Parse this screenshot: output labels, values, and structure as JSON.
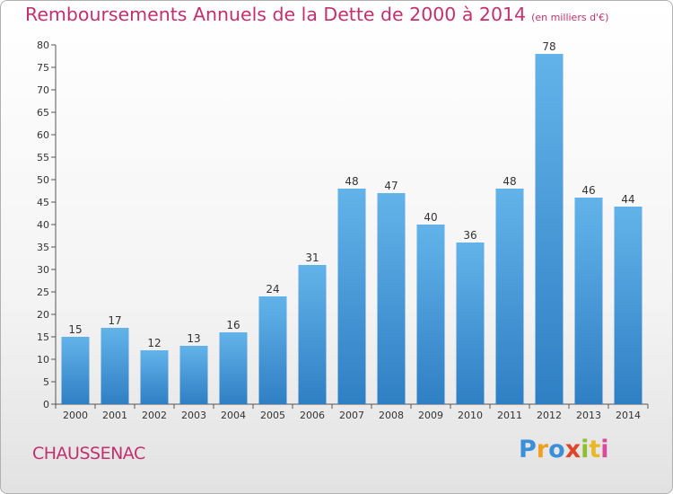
{
  "header": {
    "title": "Remboursements Annuels de la Dette de 2000 à 2014",
    "unit": "(en milliers d'€)"
  },
  "footer": {
    "commune": "CHAUSSENAC",
    "logo_letters": [
      "P",
      "r",
      "o",
      "x",
      "i",
      "t",
      "i"
    ]
  },
  "colors": {
    "title": "#c2306f",
    "bar_light": "#63b3ea",
    "bar_dark": "#2f7fc4"
  },
  "chart_data": {
    "type": "bar",
    "title": "Remboursements Annuels de la Dette de 2000 à 2014",
    "subtitle": "(en milliers d'€)",
    "xlabel": "",
    "ylabel": "",
    "categories": [
      "2000",
      "2001",
      "2002",
      "2003",
      "2004",
      "2005",
      "2006",
      "2007",
      "2008",
      "2009",
      "2010",
      "2011",
      "2012",
      "2013",
      "2014"
    ],
    "values": [
      15,
      17,
      12,
      13,
      16,
      24,
      31,
      48,
      47,
      40,
      36,
      48,
      78,
      46,
      44
    ],
    "ylim": [
      0,
      80
    ],
    "yticks": [
      0,
      5,
      10,
      15,
      20,
      25,
      30,
      35,
      40,
      45,
      50,
      55,
      60,
      65,
      70,
      75,
      80
    ],
    "grid": false,
    "data_labels": true
  }
}
